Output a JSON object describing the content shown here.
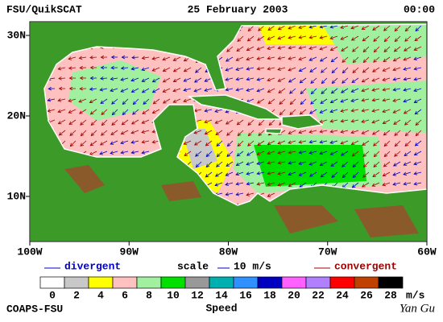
{
  "header": {
    "left": "FSU/QuikSCAT",
    "center": "25 February 2003",
    "right": "00:00"
  },
  "map": {
    "lon_labels": [
      "100W",
      "90W",
      "80W",
      "70W",
      "60W"
    ],
    "lat_labels": [
      "30N",
      "20N",
      "10N"
    ]
  },
  "legend": {
    "divergent": "divergent",
    "scale": "scale",
    "scale_value": "10 m/s",
    "convergent": "convergent"
  },
  "colorbar": {
    "ticks": [
      "0",
      "2",
      "4",
      "6",
      "8",
      "10",
      "12",
      "14",
      "16",
      "18",
      "20",
      "22",
      "24",
      "26",
      "28"
    ],
    "unit": "m/s",
    "label": "Speed",
    "colors": [
      "#ffffff",
      "#c8c8c8",
      "#ffff00",
      "#ffc0c0",
      "#a0f0a0",
      "#00e000",
      "#999999",
      "#00b0b0",
      "#3090ff",
      "#0000c0",
      "#ff60ff",
      "#b080ff",
      "#ff0000",
      "#c04000",
      "#000000"
    ]
  },
  "footer": {
    "left": "COAPS-FSU",
    "right": "Yan Gu"
  }
}
